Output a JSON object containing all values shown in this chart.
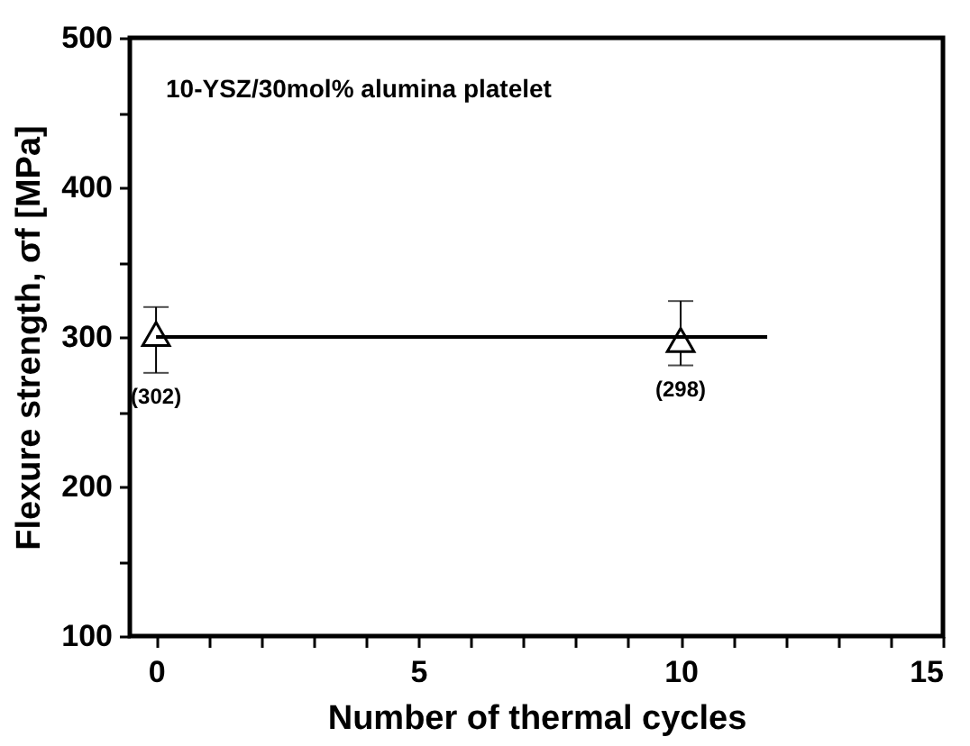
{
  "chart_data": {
    "type": "scatter",
    "xlabel": "Number of thermal cycles",
    "ylabel": "Flexure strength, σf [MPa]",
    "annotations": [
      "10-YSZ/30mol% alumina platelet"
    ],
    "xlim": [
      -0.5,
      15
    ],
    "ylim": [
      100,
      500
    ],
    "xticks": [
      0,
      {
        "value": 1,
        "label": null
      },
      {
        "value": 2,
        "label": null
      },
      {
        "value": 3,
        "label": null
      },
      {
        "value": 4,
        "label": null
      },
      5,
      {
        "value": 6,
        "label": null
      },
      {
        "value": 7,
        "label": null
      },
      {
        "value": 8,
        "label": null
      },
      {
        "value": 9,
        "label": null
      },
      10,
      {
        "value": 11,
        "label": null
      },
      {
        "value": 12,
        "label": null
      },
      {
        "value": 13,
        "label": null
      },
      {
        "value": 14,
        "label": null
      },
      15
    ],
    "yticks": [
      100,
      {
        "value": 150,
        "label": null
      },
      200,
      {
        "value": 250,
        "label": null
      },
      300,
      {
        "value": 350,
        "label": null
      },
      400,
      {
        "value": 450,
        "label": null
      },
      500
    ],
    "grid": false,
    "series": [
      {
        "marker": "triangle",
        "color": "#000000",
        "x": [
          0,
          10
        ],
        "values": [
          302,
          298
        ],
        "errors": [
          [
            276,
            320
          ],
          [
            281,
            324
          ]
        ],
        "value_labels": [
          "(302)",
          "(298)"
        ]
      },
      {
        "type": "line",
        "marker": "none",
        "line_style": "solid",
        "color": "#000000",
        "x": [
          0,
          11.65
        ],
        "values": [
          300,
          300
        ]
      }
    ]
  }
}
